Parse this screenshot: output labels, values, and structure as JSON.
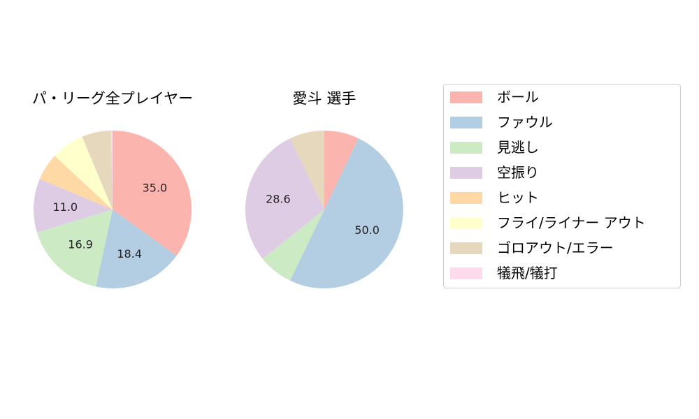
{
  "chart_data": [
    {
      "type": "pie",
      "title": "パ・リーグ全プレイヤー",
      "categories": [
        "ボール",
        "ファウル",
        "見逃し",
        "空振り",
        "ヒット",
        "フライ/ライナー アウト",
        "ゴロアウト/エラー",
        "犠飛/犠打"
      ],
      "values": [
        35.0,
        18.4,
        16.9,
        11.0,
        5.6,
        6.8,
        6.0,
        0.3
      ],
      "value_labels": [
        "35.0",
        "18.4",
        "16.9",
        "11.0",
        "",
        "",
        "",
        ""
      ],
      "start_angle_deg": 90,
      "direction": "clockwise"
    },
    {
      "type": "pie",
      "title": "愛斗  選手",
      "categories": [
        "ボール",
        "ファウル",
        "見逃し",
        "空振り",
        "ヒット",
        "フライ/ライナー アウト",
        "ゴロアウト/エラー",
        "犠飛/犠打"
      ],
      "values": [
        7.1,
        50.0,
        7.1,
        28.6,
        0,
        0,
        7.1,
        0
      ],
      "value_labels": [
        "",
        "50.0",
        "",
        "28.6",
        "",
        "",
        "",
        ""
      ],
      "start_angle_deg": 90,
      "direction": "clockwise"
    }
  ],
  "legend": {
    "placement": "right",
    "items": [
      {
        "label": "ボール",
        "color": "#fbb4ae"
      },
      {
        "label": "ファウル",
        "color": "#b3cde3"
      },
      {
        "label": "見逃し",
        "color": "#ccebc5"
      },
      {
        "label": "空振り",
        "color": "#decbe4"
      },
      {
        "label": "ヒット",
        "color": "#fed9a6"
      },
      {
        "label": "フライ/ライナー アウト",
        "color": "#ffffcc"
      },
      {
        "label": "ゴロアウト/エラー",
        "color": "#e5d8bd"
      },
      {
        "label": "犠飛/犠打",
        "color": "#fddaec"
      }
    ]
  }
}
